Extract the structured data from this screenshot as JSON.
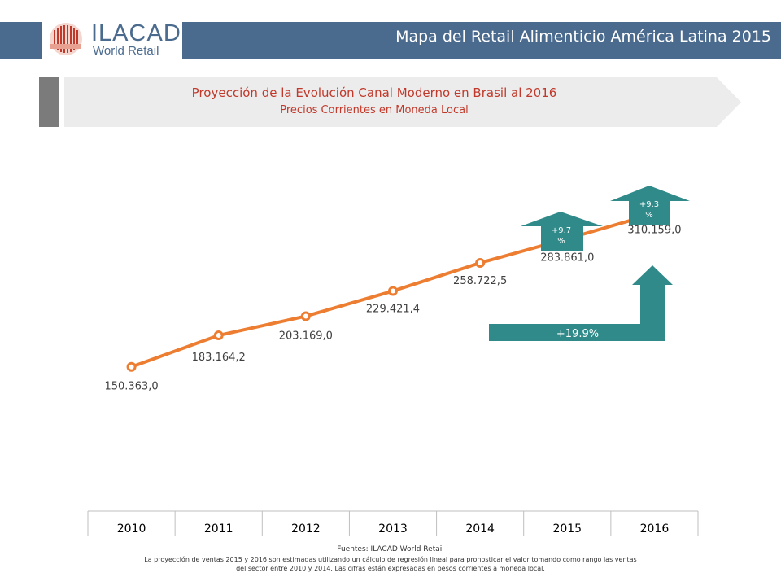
{
  "header": {
    "logo_title": "ILACAD",
    "logo_subtitle": "World Retail",
    "title": "Mapa del Retail Alimenticio América Latina 2015"
  },
  "banner": {
    "title": "Proyección de la Evolución Canal Moderno en Brasil al 2016",
    "subtitle": "Precios Corrientes en Moneda Local"
  },
  "chart_data": {
    "type": "line",
    "categories": [
      "2010",
      "2011",
      "2012",
      "2013",
      "2014",
      "2015",
      "2016"
    ],
    "values": [
      150363.0,
      183164.2,
      203169.0,
      229421.4,
      258722.5,
      283861.0,
      310159.0
    ],
    "data_labels": [
      "150.363,0",
      "183.164,2",
      "203.169,0",
      "229.421,4",
      "258.722,5",
      "283.861,0",
      "310.159,0"
    ],
    "annotations": {
      "growth_2015": [
        "+9.7",
        "%"
      ],
      "growth_2016": [
        "+9.3",
        "%"
      ],
      "growth_total": "+19.9%"
    },
    "line_color": "#ed7d31",
    "annotation_color": "#318a8a",
    "ylim": [
      0,
      380000
    ]
  },
  "footer": {
    "source": "Fuentes: ILACAD World Retail",
    "note_line1": "La proyección de ventas 2015 y 2016 son estimadas utilizando un cálculo de regresión lineal para pronosticar el valor tomando como rango las ventas",
    "note_line2": "del sector entre 2010 y 2014. Las cifras están expresadas en pesos corrientes a moneda local."
  }
}
